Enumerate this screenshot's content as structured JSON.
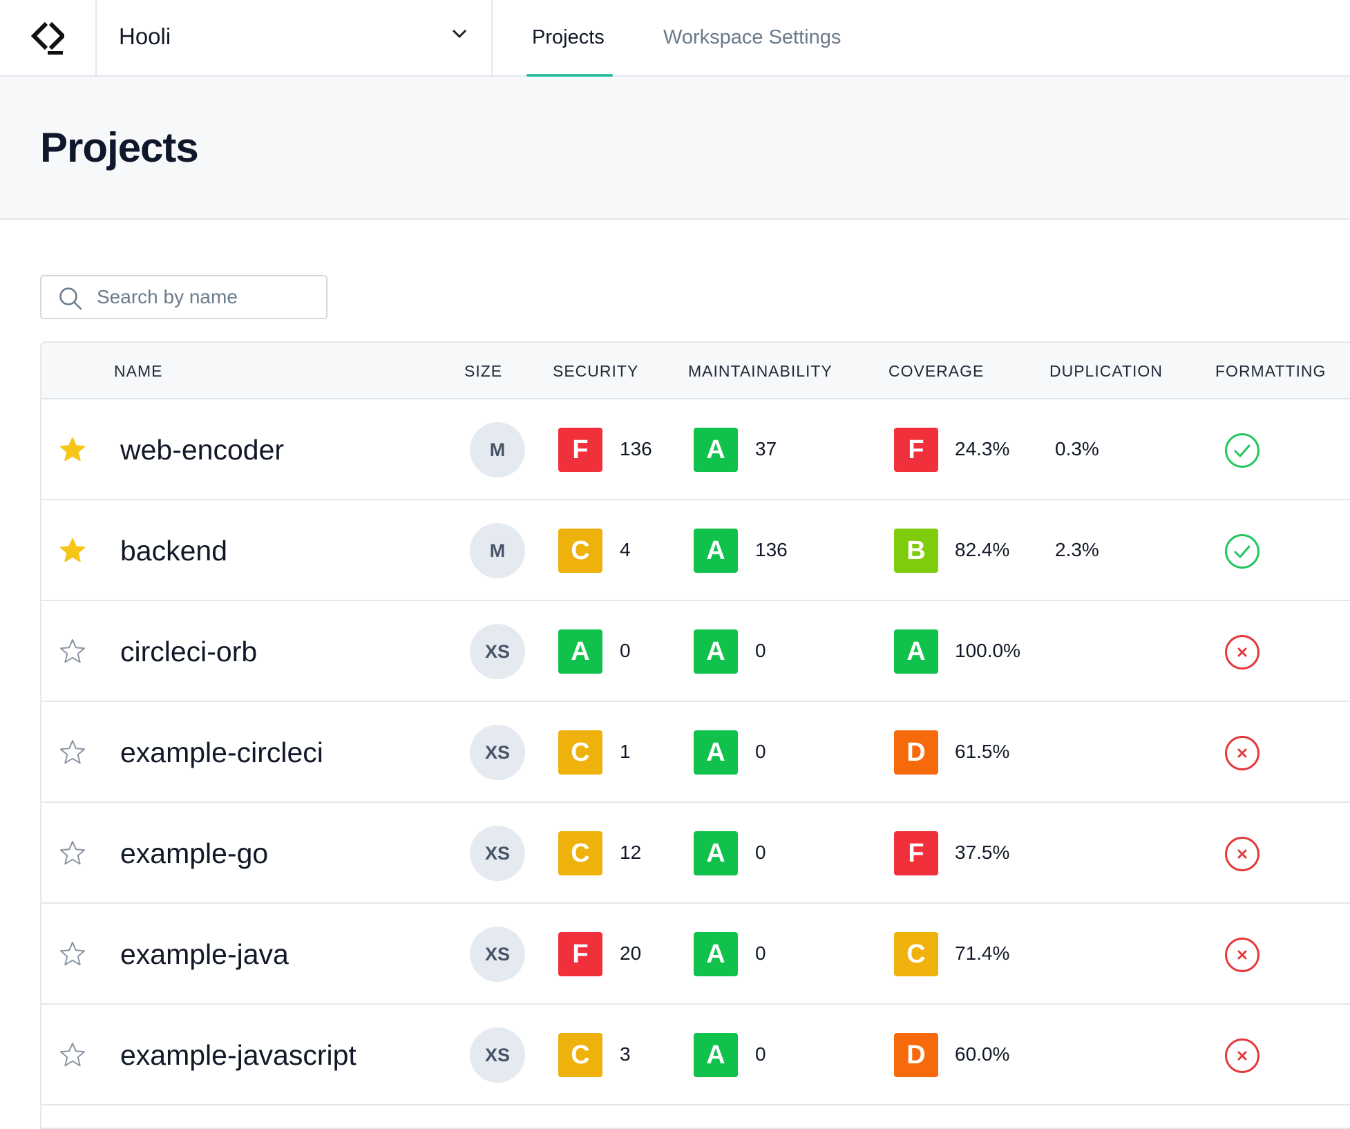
{
  "colors": {
    "accent": "#2dbd9f",
    "grade_A": "#10c24c",
    "grade_B": "#7fcc0c",
    "grade_C": "#efb10b",
    "grade_D": "#f76a0b",
    "grade_F": "#f0303a",
    "star_filled": "#f5c518",
    "pass": "#22c55e",
    "fail": "#e5383b"
  },
  "org": {
    "name": "Hooli"
  },
  "nav": {
    "tabs": [
      {
        "label": "Projects",
        "active": true
      },
      {
        "label": "Workspace Settings",
        "active": false
      }
    ]
  },
  "page": {
    "title": "Projects"
  },
  "search": {
    "placeholder": "Search by name",
    "value": ""
  },
  "table": {
    "columns": [
      "NAME",
      "SIZE",
      "SECURITY",
      "MAINTAINABILITY",
      "COVERAGE",
      "DUPLICATION",
      "FORMATTING"
    ],
    "rows": [
      {
        "starred": true,
        "name": "web-encoder",
        "size": "M",
        "security_grade": "F",
        "security_count": "136",
        "maint_grade": "A",
        "maint_count": "37",
        "coverage_grade": "F",
        "coverage_pct": "24.3%",
        "duplication": "0.3%",
        "formatting": "pass"
      },
      {
        "starred": true,
        "name": "backend",
        "size": "M",
        "security_grade": "C",
        "security_count": "4",
        "maint_grade": "A",
        "maint_count": "136",
        "coverage_grade": "B",
        "coverage_pct": "82.4%",
        "duplication": "2.3%",
        "formatting": "pass"
      },
      {
        "starred": false,
        "name": "circleci-orb",
        "size": "XS",
        "security_grade": "A",
        "security_count": "0",
        "maint_grade": "A",
        "maint_count": "0",
        "coverage_grade": "A",
        "coverage_pct": "100.0%",
        "duplication": "",
        "formatting": "fail"
      },
      {
        "starred": false,
        "name": "example-circleci",
        "size": "XS",
        "security_grade": "C",
        "security_count": "1",
        "maint_grade": "A",
        "maint_count": "0",
        "coverage_grade": "D",
        "coverage_pct": "61.5%",
        "duplication": "",
        "formatting": "fail"
      },
      {
        "starred": false,
        "name": "example-go",
        "size": "XS",
        "security_grade": "C",
        "security_count": "12",
        "maint_grade": "A",
        "maint_count": "0",
        "coverage_grade": "F",
        "coverage_pct": "37.5%",
        "duplication": "",
        "formatting": "fail"
      },
      {
        "starred": false,
        "name": "example-java",
        "size": "XS",
        "security_grade": "F",
        "security_count": "20",
        "maint_grade": "A",
        "maint_count": "0",
        "coverage_grade": "C",
        "coverage_pct": "71.4%",
        "duplication": "",
        "formatting": "fail"
      },
      {
        "starred": false,
        "name": "example-javascript",
        "size": "XS",
        "security_grade": "C",
        "security_count": "3",
        "maint_grade": "A",
        "maint_count": "0",
        "coverage_grade": "D",
        "coverage_pct": "60.0%",
        "duplication": "",
        "formatting": "fail"
      }
    ]
  }
}
